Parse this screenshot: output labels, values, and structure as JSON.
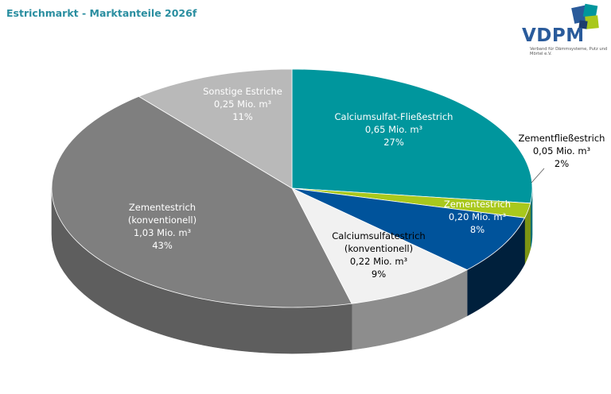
{
  "page": {
    "title": "Estrichmarkt - Marktanteile 2026f"
  },
  "logo": {
    "name": "VDPM",
    "subtitle": "Verband für Dämmsysteme, Putz und Mörtel e.V."
  },
  "chart_data": {
    "type": "pie",
    "title": "Estrichmarkt - Marktanteile 2026f",
    "unit": "Mio. m³",
    "slices": [
      {
        "name": "Calciumsulfat-Fließestrich",
        "label_lines": [
          "Calciumsulfat-Fließestrich"
        ],
        "value": 0.65,
        "value_label": "0,65 Mio. m³",
        "percent": 27,
        "percent_label": "27%",
        "color": "#00969d",
        "side_color": "#006e74",
        "label_color": "#ffffff"
      },
      {
        "name": "Zementfließestrich",
        "label_lines": [
          "Zementfließestrich"
        ],
        "value": 0.05,
        "value_label": "0,05 Mio. m³",
        "percent": 2,
        "percent_label": "2%",
        "color": "#a9c81c",
        "side_color": "#7d9414",
        "label_color": "#000000"
      },
      {
        "name": "Zementestrich",
        "label_lines": [
          "Zementestrich"
        ],
        "value": 0.2,
        "value_label": "0,20 Mio. m³",
        "percent": 8,
        "percent_label": "8%",
        "color": "#00539b",
        "side_color": "#00203c",
        "label_color": "#ffffff"
      },
      {
        "name": "Calciumsulfatestrich (konventionell)",
        "label_lines": [
          "Calciumsulfatestrich",
          "(konventionell)"
        ],
        "value": 0.22,
        "value_label": "0,22 Mio. m³",
        "percent": 9,
        "percent_label": "9%",
        "color": "#f1f1f1",
        "side_color": "#8d8d8d",
        "label_color": "#000000"
      },
      {
        "name": "Zementestrich (konventionell)",
        "label_lines": [
          "Zementestrich",
          "(konventionell)"
        ],
        "value": 1.03,
        "value_label": "1,03 Mio. m³",
        "percent": 43,
        "percent_label": "43%",
        "color": "#7f7f7f",
        "side_color": "#5e5e5e",
        "label_color": "#ffffff"
      },
      {
        "name": "Sonstige Estriche",
        "label_lines": [
          "Sonstige Estriche"
        ],
        "value": 0.25,
        "value_label": "0,25 Mio. m³",
        "percent": 11,
        "percent_label": "11%",
        "color": "#b9b9b9",
        "side_color": "#8a8a8a",
        "label_color": "#ffffff"
      }
    ]
  }
}
